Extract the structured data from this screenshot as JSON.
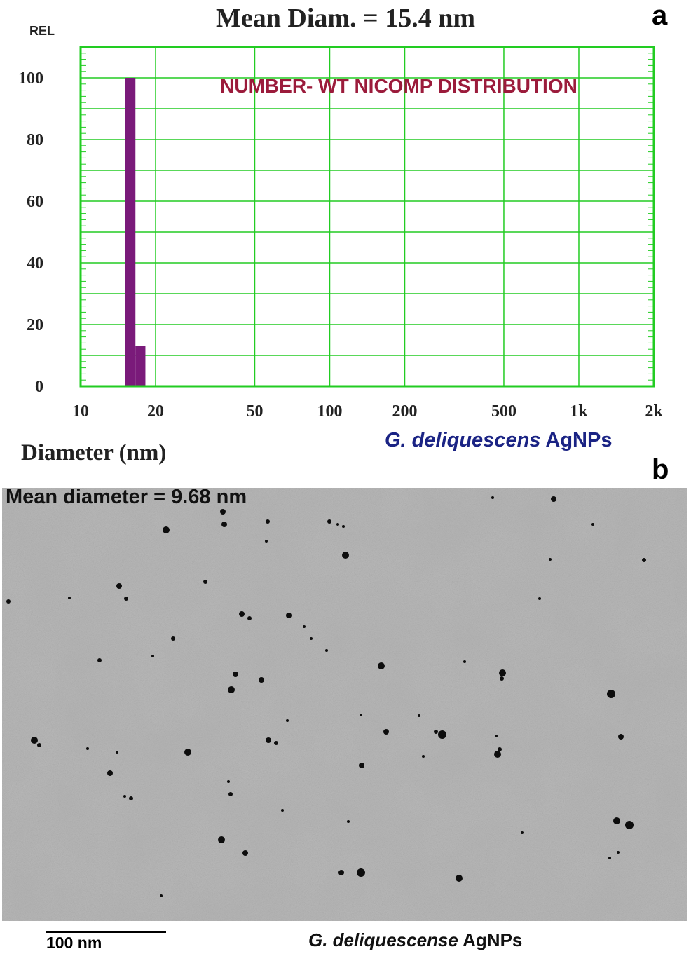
{
  "panel_a": {
    "panel_label": "a",
    "caption_species": "G. deliquescens",
    "caption_suffix": " AgNPs"
  },
  "panel_b": {
    "panel_label": "b",
    "mean_text": "Mean diameter = 9.68 nm",
    "scale_label": "100 nm",
    "caption_species": "G. deliquescense",
    "caption_suffix": " AgNPs"
  },
  "colors": {
    "grid": "#22cc22",
    "bar": "#7a1a7a",
    "inner_title": "#9b1b3b",
    "caption_blue": "#1a2384"
  },
  "chart_data": {
    "type": "bar",
    "title": "Mean Diam. = 15.4 nm",
    "inner_title": "NUMBER- WT NICOMP DISTRIBUTION",
    "xlabel": "Diameter (nm)",
    "ylabel": "REL",
    "x_scale": "log",
    "xlim": [
      10,
      2000
    ],
    "ylim": [
      0,
      110
    ],
    "x_ticks": [
      {
        "value": 10,
        "label": "10"
      },
      {
        "value": 20,
        "label": "20"
      },
      {
        "value": 50,
        "label": "50"
      },
      {
        "value": 100,
        "label": "100"
      },
      {
        "value": 200,
        "label": "200"
      },
      {
        "value": 500,
        "label": "500"
      },
      {
        "value": 1000,
        "label": "1k"
      },
      {
        "value": 2000,
        "label": "2k"
      }
    ],
    "y_ticks": [
      {
        "value": 0,
        "label": "0"
      },
      {
        "value": 20,
        "label": "20"
      },
      {
        "value": 40,
        "label": "40"
      },
      {
        "value": 60,
        "label": "60"
      },
      {
        "value": 80,
        "label": "80"
      },
      {
        "value": 100,
        "label": "100"
      }
    ],
    "grid": true,
    "bars": [
      {
        "x_start": 15.1,
        "x_end": 16.6,
        "value": 100
      },
      {
        "x_start": 16.6,
        "x_end": 18.2,
        "value": 13
      }
    ]
  }
}
